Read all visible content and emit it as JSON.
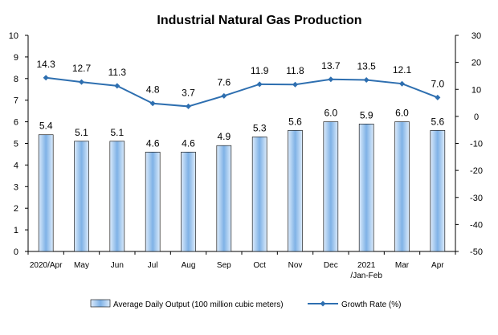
{
  "chart_data": {
    "type": "bar",
    "title": "Industrial Natural Gas Production",
    "categories": [
      [
        "2020/Apr"
      ],
      [
        "May"
      ],
      [
        "Jun"
      ],
      [
        "Jul"
      ],
      [
        "Aug"
      ],
      [
        "Sep"
      ],
      [
        "Oct"
      ],
      [
        "Nov"
      ],
      [
        "Dec"
      ],
      [
        "2021",
        "/Jan-Feb"
      ],
      [
        "Mar"
      ],
      [
        "Apr"
      ]
    ],
    "series": [
      {
        "name": "Average Daily Output (100 million cubic meters)",
        "type": "bar",
        "axis": "left",
        "values": [
          5.4,
          5.1,
          5.1,
          4.6,
          4.6,
          4.9,
          5.3,
          5.6,
          6.0,
          5.9,
          6.0,
          5.6
        ],
        "labels": [
          "5.4",
          "5.1",
          "5.1",
          "4.6",
          "4.6",
          "4.9",
          "5.3",
          "5.6",
          "6.0",
          "5.9",
          "6.0",
          "5.6"
        ]
      },
      {
        "name": "Growth Rate (%)",
        "type": "line",
        "axis": "right",
        "values": [
          14.3,
          12.7,
          11.3,
          4.8,
          3.7,
          7.6,
          11.9,
          11.8,
          13.7,
          13.5,
          12.1,
          7.0
        ],
        "labels": [
          "14.3",
          "12.7",
          "11.3",
          "4.8",
          "3.7",
          "7.6",
          "11.9",
          "11.8",
          "13.7",
          "13.5",
          "12.1",
          "7.0"
        ]
      }
    ],
    "y_left": {
      "range": [
        0,
        10
      ],
      "ticks": [
        "0",
        "1",
        "2",
        "3",
        "4",
        "5",
        "6",
        "7",
        "8",
        "9",
        "10"
      ]
    },
    "y_right": {
      "range": [
        -50,
        30
      ],
      "ticks": [
        "-50",
        "-40",
        "-30",
        "-20",
        "-10",
        "0",
        "10",
        "20",
        "30"
      ]
    },
    "grid": false,
    "legend_position": "bottom",
    "colors": {
      "bar_fill_light": "#dcebfb",
      "bar_fill_dark": "#7fb2e6",
      "bar_stroke": "#000000",
      "line": "#2e6fb0",
      "axis": "#000000"
    }
  }
}
